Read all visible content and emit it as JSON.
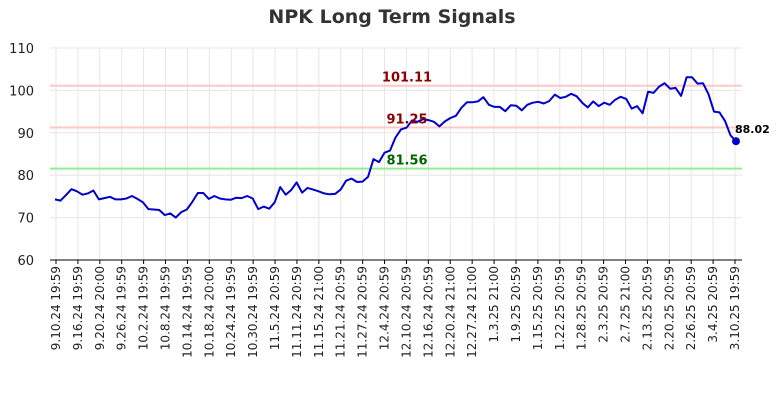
{
  "chart_data": {
    "type": "line",
    "title": "NPK Long Term Signals",
    "xlabel": "",
    "ylabel": "",
    "ylim": [
      60,
      110
    ],
    "yticks": [
      60,
      70,
      80,
      90,
      100,
      110
    ],
    "grid": true,
    "x_tick_labels": [
      "9.10.24 19:59",
      "9.16.24 19:59",
      "9.20.24 20:00",
      "9.26.24 19:59",
      "10.2.24 19:59",
      "10.8.24 19:59",
      "10.14.24 19:59",
      "10.18.24 20:00",
      "10.24.24 19:59",
      "10.30.24 19:59",
      "11.5.24 20:59",
      "11.11.24 20:59",
      "11.15.24 21:00",
      "11.21.24 20:59",
      "11.27.24 20:59",
      "12.4.24 20:59",
      "12.10.24 20:59",
      "12.16.24 20:59",
      "12.20.24 21:00",
      "12.27.24 21:00",
      "1.3.25 21:00",
      "1.9.25 20:59",
      "1.15.25 20:59",
      "1.22.25 20:59",
      "1.28.25 20:59",
      "2.3.25 20:59",
      "2.7.25 21:00",
      "2.13.25 20:59",
      "2.20.25 20:59",
      "2.26.25 20:59",
      "3.4.25 20:59",
      "3.10.25 19:59"
    ],
    "series": [
      {
        "color": "#0000cc",
        "values": [
          74.3,
          74.0,
          75.3,
          76.7,
          76.2,
          75.4,
          75.7,
          76.4,
          74.3,
          74.6,
          74.9,
          74.3,
          74.3,
          74.5,
          75.1,
          74.4,
          73.6,
          72.0,
          71.9,
          71.8,
          70.6,
          71.0,
          70.0,
          71.3,
          71.9,
          73.7,
          75.8,
          75.8,
          74.4,
          75.1,
          74.5,
          74.3,
          74.2,
          74.7,
          74.6,
          75.1,
          74.5,
          72.0,
          72.6,
          72.1,
          73.6,
          77.2,
          75.4,
          76.5,
          78.3,
          75.9,
          77.0,
          76.6,
          76.2,
          75.7,
          75.5,
          75.6,
          76.6,
          78.7,
          79.2,
          78.4,
          78.5,
          79.6,
          83.8,
          83.1,
          85.3,
          85.8,
          88.9,
          90.8,
          91.2,
          92.9,
          92.6,
          93.2,
          93.0,
          92.6,
          91.5,
          92.7,
          93.5,
          94.0,
          95.9,
          97.2,
          97.2,
          97.4,
          98.4,
          96.6,
          96.1,
          96.1,
          95.1,
          96.5,
          96.4,
          95.3,
          96.6,
          97.1,
          97.3,
          96.9,
          97.5,
          99.0,
          98.2,
          98.5,
          99.2,
          98.6,
          97.1,
          96.0,
          97.4,
          96.3,
          97.1,
          96.6,
          97.8,
          98.5,
          98.0,
          95.7,
          96.3,
          94.6,
          99.7,
          99.4,
          100.9,
          101.7,
          100.4,
          100.6,
          98.7,
          103.1,
          103.1,
          101.6,
          101.7,
          99.1,
          95.0,
          94.8,
          92.8,
          89.4,
          88.02
        ]
      }
    ],
    "last_point": {
      "value": 88.02,
      "label": "88.02",
      "color": "#0000cc"
    },
    "signal_lines": [
      {
        "value": 101.11,
        "label": "101.11",
        "line_color": "#ffc8c8",
        "text_color": "#8b0000"
      },
      {
        "value": 91.25,
        "label": "91.25",
        "line_color": "#ffc8c8",
        "text_color": "#8b0000"
      },
      {
        "value": 81.56,
        "label": "81.56",
        "line_color": "#90ee90",
        "text_color": "#006400"
      }
    ],
    "colors": {
      "axis": "#000000",
      "grid": "#e6e6e6",
      "tick_text": "#222222"
    }
  }
}
